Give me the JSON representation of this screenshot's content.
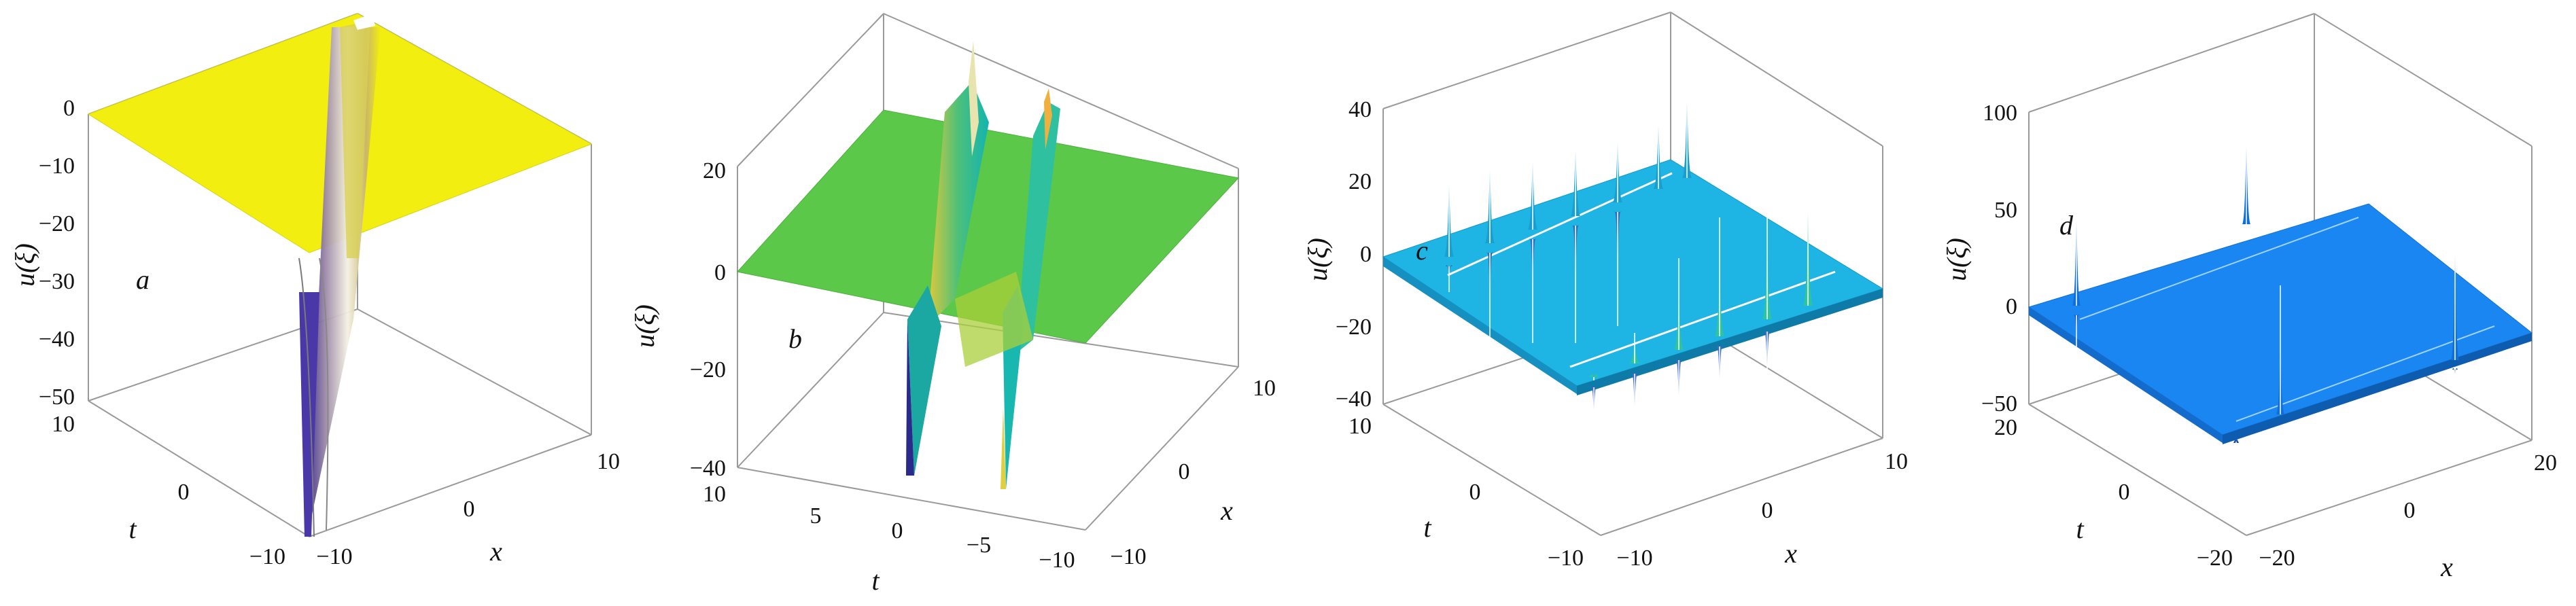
{
  "chart_data": [
    {
      "type": "surface",
      "panel_label": "a",
      "zlabel": "u(ξ)",
      "xlabel": "x",
      "tlabel": "t",
      "z_ticks": [
        "0",
        "−10",
        "−20",
        "−30",
        "−40",
        "−50"
      ],
      "t_ticks": [
        "10",
        "0",
        "−10"
      ],
      "x_ticks": [
        "−10",
        "0",
        "10"
      ],
      "zlim": [
        -50,
        0
      ],
      "xlim": [
        -10,
        10
      ],
      "tlim": [
        -10,
        10
      ],
      "color": "#F2EE10",
      "description_values": {
        "plateau": 0,
        "trough_min": -50
      }
    },
    {
      "type": "surface",
      "panel_label": "b",
      "zlabel": "u(ξ)",
      "xlabel": "x",
      "tlabel": "t",
      "z_ticks": [
        "20",
        "0",
        "−20",
        "−40"
      ],
      "t_ticks": [
        "10",
        "5",
        "0",
        "−5",
        "−10"
      ],
      "x_ticks": [
        "10",
        "0",
        "−10"
      ],
      "zlim": [
        -40,
        20
      ],
      "xlim": [
        -10,
        10
      ],
      "tlim": [
        -10,
        10
      ],
      "color": "#5CC84A",
      "description_values": {
        "plateau": 0,
        "peak": 20,
        "trough": -40
      }
    },
    {
      "type": "surface",
      "panel_label": "c",
      "zlabel": "u(ξ)",
      "xlabel": "x",
      "tlabel": "t",
      "z_ticks": [
        "40",
        "20",
        "0",
        "−20",
        "−40"
      ],
      "t_ticks": [
        "10",
        "0",
        "−10"
      ],
      "x_ticks": [
        "−10",
        "0",
        "10"
      ],
      "zlim": [
        -40,
        40
      ],
      "xlim": [
        -10,
        10
      ],
      "tlim": [
        -10,
        10
      ],
      "color": "#1EB4E4",
      "description_values": {
        "plateau": 0,
        "spike_max": 40,
        "spike_min": -40
      }
    },
    {
      "type": "surface",
      "panel_label": "d",
      "zlabel": "u(ξ)",
      "xlabel": "x",
      "tlabel": "t",
      "z_ticks": [
        "100",
        "50",
        "0",
        "−50"
      ],
      "t_ticks": [
        "20",
        "0",
        "−20"
      ],
      "x_ticks": [
        "−20",
        "0",
        "20"
      ],
      "zlim": [
        -50,
        100
      ],
      "xlim": [
        -20,
        20
      ],
      "tlim": [
        -20,
        20
      ],
      "color": "#1A86F2",
      "description_values": {
        "plateau": 0,
        "spike_max": 100
      }
    }
  ]
}
